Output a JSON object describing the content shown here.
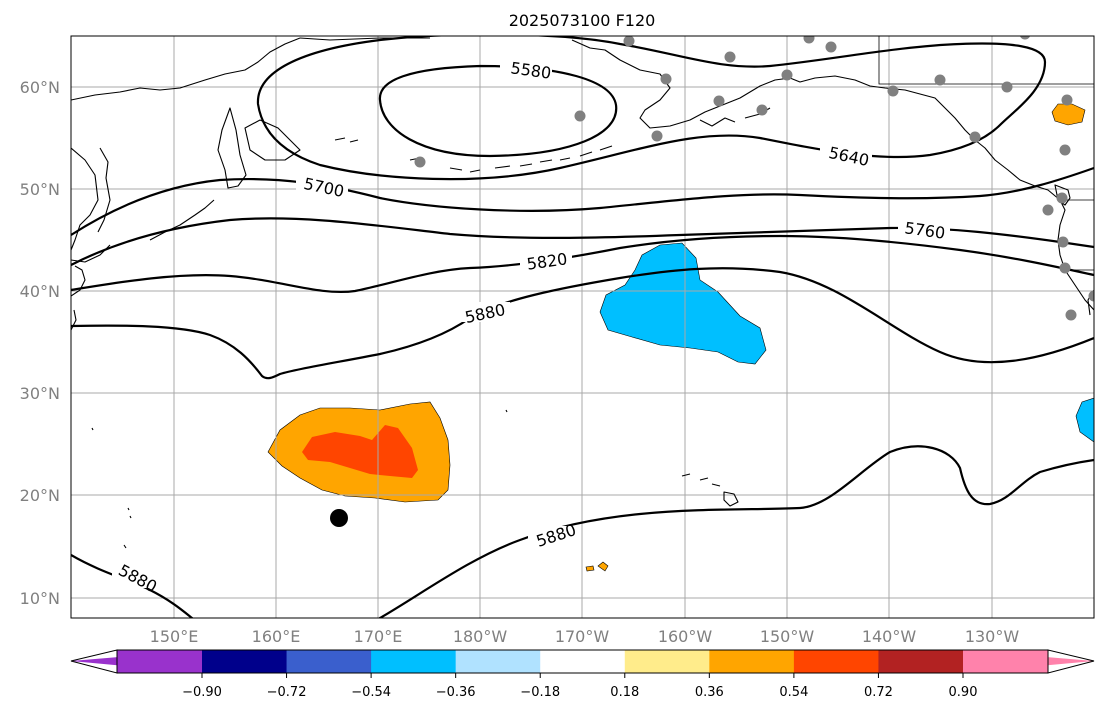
{
  "title": "2025073100 F120",
  "lat_labels": [
    "60°N",
    "50°N",
    "40°N",
    "30°N",
    "20°N",
    "10°N"
  ],
  "lon_labels": [
    "150°E",
    "160°E",
    "170°E",
    "180°W",
    "170°W",
    "160°W",
    "150°W",
    "140°W",
    "130°W"
  ],
  "contour_labels": [
    "5580",
    "5640",
    "5700",
    "5760",
    "5820",
    "5880",
    "5880",
    "5880"
  ],
  "colorbar": {
    "colors": [
      "#9932cc",
      "#00008b",
      "#3a5fcd",
      "#00bfff",
      "#b0e2ff",
      "#ffffff",
      "#ffec8b",
      "#ffa500",
      "#ff4500",
      "#b22222",
      "#ff82ab"
    ],
    "tick_labels": [
      "−0.90",
      "−0.72",
      "−0.54",
      "−0.36",
      "−0.18",
      "0.18",
      "0.36",
      "0.54",
      "0.72",
      "0.90"
    ]
  },
  "markers": {
    "storm_marker_color": "#000000",
    "station_color": "#808080"
  }
}
